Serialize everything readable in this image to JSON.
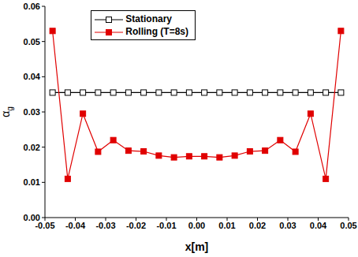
{
  "chart_data": {
    "type": "line",
    "x_label": "x[m]",
    "y_label": "αg",
    "xlim": [
      -0.05,
      0.05
    ],
    "xticks": [
      -0.05,
      -0.04,
      -0.03,
      -0.02,
      -0.01,
      {
        "value": 0,
        "label": "0.00"
      },
      0.01,
      0.02,
      0.03,
      0.04,
      0.05
    ],
    "ylim": [
      0,
      0.06
    ],
    "yticks": [
      {
        "value": 0,
        "label": "0.00"
      },
      0.01,
      0.02,
      0.03,
      0.04,
      0.05,
      0.06
    ],
    "x": [
      -0.0475,
      -0.0425,
      -0.0375,
      -0.0325,
      -0.0275,
      -0.0225,
      -0.0175,
      -0.0125,
      -0.0075,
      -0.0025,
      0.0025,
      0.0075,
      0.0125,
      0.0175,
      0.0225,
      0.0275,
      0.0325,
      0.0375,
      0.0425,
      0.0475
    ],
    "series": [
      {
        "name": "Stationary",
        "color": "#000000",
        "marker": "open_square",
        "values": [
          0.0355,
          0.0355,
          0.0355,
          0.0355,
          0.0355,
          0.0355,
          0.0355,
          0.0355,
          0.0355,
          0.0355,
          0.0355,
          0.0355,
          0.0355,
          0.0355,
          0.0355,
          0.0355,
          0.0355,
          0.0355,
          0.0355,
          0.0355
        ]
      },
      {
        "name": "Rolling (T=8s)",
        "color": "#e00000",
        "marker": "square",
        "values": [
          0.053,
          0.011,
          0.0295,
          0.0187,
          0.022,
          0.019,
          0.0188,
          0.0176,
          0.0171,
          0.0174,
          0.0174,
          0.0171,
          0.0176,
          0.0188,
          0.019,
          0.022,
          0.0187,
          0.0295,
          0.011,
          0.053
        ]
      }
    ],
    "legend": "upper left",
    "grid": false
  }
}
